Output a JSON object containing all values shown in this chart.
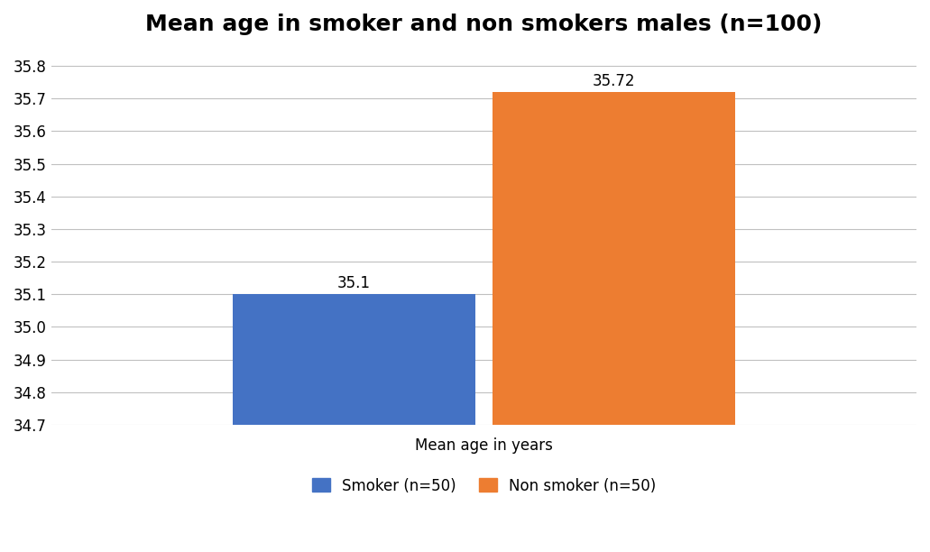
{
  "title": "Mean age in smoker and non smokers males (n=100)",
  "xlabel": "Mean age in years",
  "ylabel": "",
  "categories": [
    "Smoker",
    "Non smoker"
  ],
  "values": [
    35.1,
    35.72
  ],
  "bar_colors": [
    "#4472C4",
    "#ED7D31"
  ],
  "bar_labels": [
    "35.1",
    "35.72"
  ],
  "legend_labels": [
    "Smoker (n=50)",
    "Non smoker (n=50)"
  ],
  "ylim_min": 34.7,
  "ylim_max": 35.85,
  "yticks": [
    34.7,
    34.8,
    34.9,
    35.0,
    35.1,
    35.2,
    35.3,
    35.4,
    35.5,
    35.6,
    35.7,
    35.8
  ],
  "background_color": "#FFFFFF",
  "grid_color": "#C0C0C0",
  "title_fontsize": 18,
  "label_fontsize": 12,
  "tick_fontsize": 12,
  "bar_label_fontsize": 12
}
